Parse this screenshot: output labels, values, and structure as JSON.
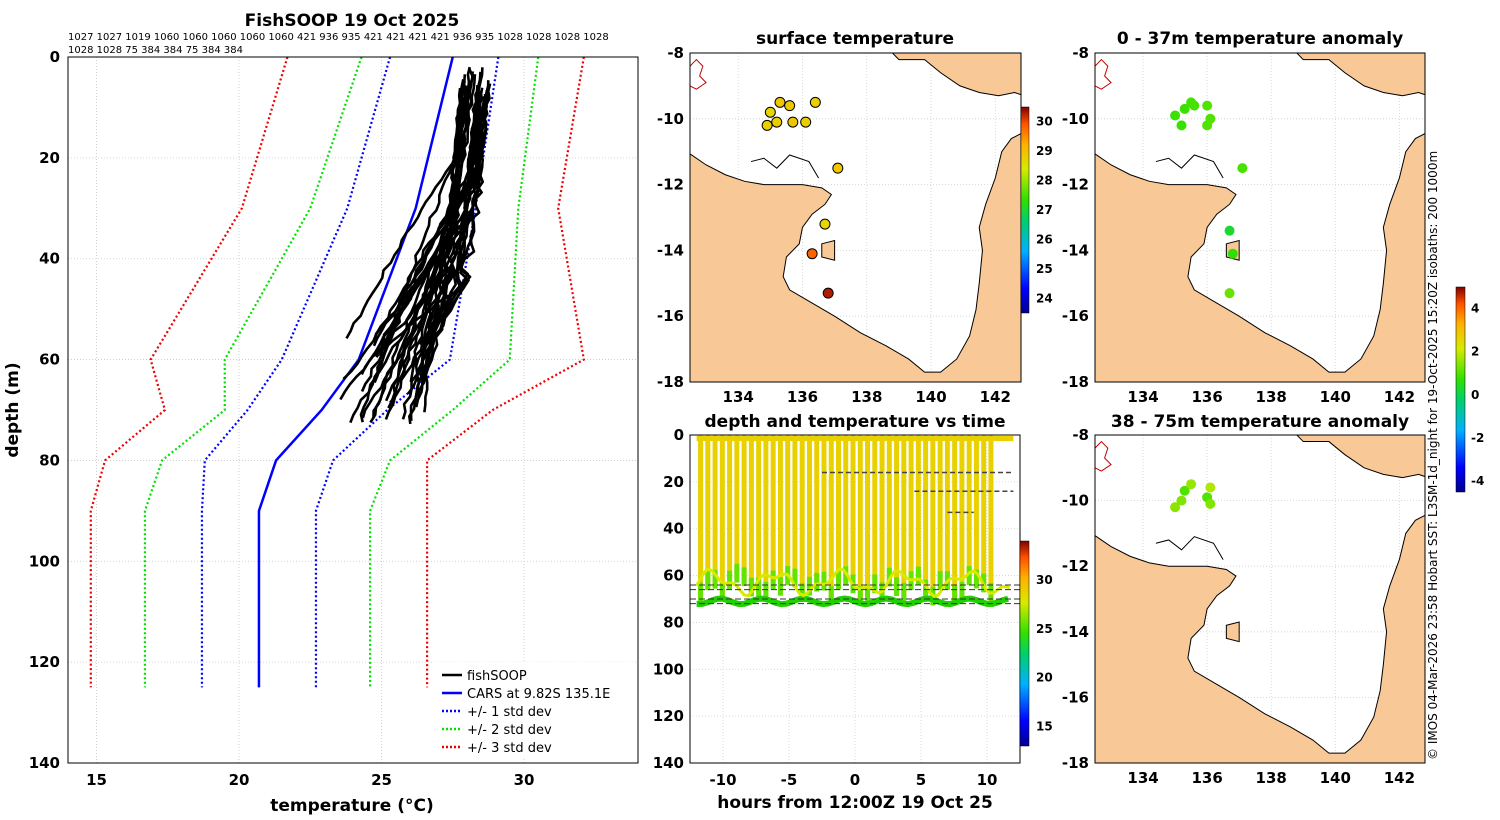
{
  "chart_data": [
    {
      "id": "profile",
      "type": "line",
      "title": "FishSOOP 19 Oct 2025",
      "top_labels_row1": "1027 1027 1019 1060 1060 1060 1060 1060 421 936 935 421 421 421 421 936 935 1028 1028 1028 1028",
      "top_labels_row2": "1028 1028 75 384 384 75 384 384",
      "xlabel": "temperature (°C)",
      "ylabel": "depth (m)",
      "xlim": [
        14,
        34
      ],
      "ylim": [
        0,
        140
      ],
      "xticks": [
        "15",
        "20",
        "25",
        "30"
      ],
      "yticks": [
        "0",
        "20",
        "40",
        "60",
        "80",
        "100",
        "120",
        "140"
      ],
      "legend_position": "bottom-right",
      "legend": [
        "fishSOOP",
        "CARS at 9.82S 135.1E",
        "+/- 1 std dev",
        "+/- 2 std dev",
        "+/- 3 std dev"
      ],
      "depths": [
        0,
        30,
        60,
        70,
        80,
        90,
        125
      ],
      "cars_mean": [
        27.5,
        26.2,
        24.2,
        22.9,
        21.3,
        20.7,
        20.7
      ],
      "std1_lo": [
        25.3,
        23.8,
        21.5,
        20.3,
        18.8,
        18.7,
        18.7
      ],
      "std1_hi": [
        29.1,
        28.3,
        27.4,
        25.2,
        23.3,
        22.7,
        22.7
      ],
      "std2_lo": [
        24.3,
        22.5,
        19.5,
        19.5,
        17.3,
        16.7,
        16.7
      ],
      "std2_hi": [
        30.5,
        29.8,
        29.5,
        27.5,
        25.3,
        24.6,
        24.6
      ],
      "std3_lo": [
        21.7,
        20.1,
        16.9,
        17.4,
        15.3,
        14.8,
        14.8
      ],
      "std3_hi": [
        32.1,
        31.2,
        32.1,
        28.9,
        26.6,
        26.6,
        26.6
      ]
    },
    {
      "id": "surface",
      "type": "scatter",
      "title": "surface temperature",
      "xlim": [
        132.5,
        142.8
      ],
      "ylim": [
        -18,
        -8
      ],
      "xticks": [
        "134",
        "136",
        "138",
        "140",
        "142"
      ],
      "yticks": [
        "-8",
        "-10",
        "-12",
        "-14",
        "-16",
        "-18"
      ],
      "colorbar_ticks": [
        "24",
        "25",
        "26",
        "27",
        "28",
        "29",
        "30"
      ],
      "colorbar_range": [
        23.5,
        30.5
      ],
      "points": [
        [
          135.0,
          -9.8,
          28.7
        ],
        [
          135.3,
          -9.5,
          28.9
        ],
        [
          135.6,
          -9.6,
          28.9
        ],
        [
          134.9,
          -10.2,
          28.8
        ],
        [
          135.2,
          -10.1,
          28.8
        ],
        [
          135.7,
          -10.1,
          28.9
        ],
        [
          136.1,
          -10.1,
          28.8
        ],
        [
          136.4,
          -9.5,
          28.8
        ],
        [
          137.1,
          -11.5,
          28.9
        ],
        [
          136.7,
          -13.2,
          28.7
        ],
        [
          136.3,
          -14.1,
          29.8
        ],
        [
          136.8,
          -15.3,
          30.3
        ]
      ]
    },
    {
      "id": "anom1",
      "type": "scatter",
      "title": "0 - 37m temperature anomaly",
      "xlim": [
        132.5,
        142.8
      ],
      "ylim": [
        -18,
        -8
      ],
      "xticks": [
        "134",
        "136",
        "138",
        "140",
        "142"
      ],
      "yticks": [
        "-8",
        "-10",
        "-12",
        "-14",
        "-16",
        "-18"
      ],
      "points": [
        [
          135.0,
          -9.9,
          0.8
        ],
        [
          135.2,
          -10.2,
          0.8
        ],
        [
          135.3,
          -9.7,
          0.8
        ],
        [
          135.5,
          -9.5,
          0.9
        ],
        [
          135.6,
          -9.6,
          0.9
        ],
        [
          136.0,
          -9.6,
          1.0
        ],
        [
          136.1,
          -10.0,
          1.0
        ],
        [
          136.0,
          -10.2,
          1.0
        ],
        [
          137.1,
          -11.5,
          0.9
        ],
        [
          136.7,
          -13.4,
          0.3
        ],
        [
          136.8,
          -14.1,
          0.7
        ],
        [
          136.7,
          -15.3,
          1.2
        ]
      ]
    },
    {
      "id": "anom2",
      "type": "scatter",
      "title": "38 - 75m temperature anomaly",
      "xlim": [
        132.5,
        142.8
      ],
      "ylim": [
        -18,
        -8
      ],
      "xticks": [
        "134",
        "136",
        "138",
        "140",
        "142"
      ],
      "yticks": [
        "-8",
        "-10",
        "-12",
        "-14",
        "-16",
        "-18"
      ],
      "colorbar_ticks": [
        "-4",
        "-2",
        "0",
        "2",
        "4"
      ],
      "colorbar_range": [
        -4.5,
        5
      ],
      "points": [
        [
          135.0,
          -10.2,
          1.5
        ],
        [
          135.2,
          -10.0,
          1.4
        ],
        [
          135.3,
          -9.7,
          1.0
        ],
        [
          135.5,
          -9.5,
          1.6
        ],
        [
          136.1,
          -9.6,
          1.8
        ],
        [
          136.0,
          -9.9,
          1.0
        ],
        [
          136.1,
          -10.1,
          1.4
        ]
      ]
    },
    {
      "id": "timeseries",
      "type": "scatter",
      "title": "depth and temperature vs time",
      "xlabel": "hours from 12:00Z 19 Oct 25",
      "xlim": [
        -12.5,
        12.5
      ],
      "ylim": [
        0,
        140
      ],
      "xticks": [
        "-10",
        "-5",
        "0",
        "5",
        "10"
      ],
      "yticks": [
        "0",
        "20",
        "40",
        "60",
        "80",
        "100",
        "120",
        "140"
      ],
      "colorbar_ticks": [
        "15",
        "20",
        "25",
        "30"
      ],
      "colorbar_range": [
        13,
        34
      ],
      "bottom_depth": [
        64,
        66,
        70,
        72
      ],
      "surface_temp": 28.8,
      "bottom_temp": 25.5
    }
  ],
  "sidebar_text": "© IMOS 04-Mar-2026 23:58 Hobart SST: L3SM-1d_night for 19-Oct-2025 15:20Z isobaths: 200  1000m",
  "colors": {
    "ocean": "#ffffff",
    "land": "#f8c896",
    "coast": "#000000",
    "river": "#c00000",
    "profile": "#000000",
    "cars": "#0000ff",
    "std1": "#0000ff",
    "std2": "#00e000",
    "std3": "#ee0000"
  }
}
